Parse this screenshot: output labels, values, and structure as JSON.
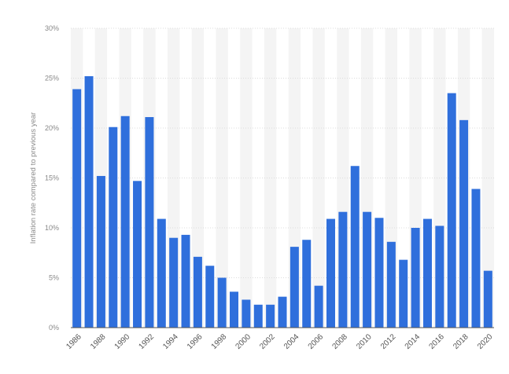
{
  "chart_data": {
    "type": "bar",
    "title": "",
    "xlabel": "",
    "ylabel": "Inflation rate compared to previous year",
    "ylim": [
      0,
      30
    ],
    "y_ticks": [
      0,
      5,
      10,
      15,
      20,
      25,
      30
    ],
    "y_tick_suffix": "%",
    "grid": true,
    "bar_color": "#2f6fdc",
    "band_color": "#f4f4f4",
    "categories": [
      "1986",
      "1987",
      "1988",
      "1989",
      "1990",
      "1991",
      "1992",
      "1993",
      "1994",
      "1995",
      "1996",
      "1997",
      "1998",
      "1999",
      "2000",
      "2001",
      "2002",
      "2003",
      "2004",
      "2005",
      "2006",
      "2007",
      "2008",
      "2009",
      "2010",
      "2011",
      "2012",
      "2013",
      "2014",
      "2015",
      "2016",
      "2017",
      "2018",
      "2019",
      "2020"
    ],
    "x_tick_labels": [
      "1986",
      "",
      "1988",
      "",
      "1990",
      "",
      "1992",
      "",
      "1994",
      "",
      "1996",
      "",
      "1998",
      "",
      "2000",
      "",
      "2002",
      "",
      "2004",
      "",
      "2006",
      "",
      "2008",
      "",
      "2010",
      "",
      "2012",
      "",
      "2014",
      "",
      "2016",
      "",
      "2018",
      "",
      "2020"
    ],
    "series": [
      {
        "values": [
          23.9,
          25.2,
          15.2,
          20.1,
          21.2,
          14.7,
          21.1,
          10.9,
          9.0,
          9.3,
          7.1,
          6.2,
          5.0,
          3.6,
          2.8,
          2.3,
          2.3,
          3.1,
          8.1,
          8.8,
          4.2,
          10.9,
          11.6,
          16.2,
          11.6,
          11.0,
          8.6,
          6.8,
          10.0,
          10.9,
          10.2,
          23.5,
          20.8,
          13.9,
          5.7
        ]
      }
    ]
  }
}
